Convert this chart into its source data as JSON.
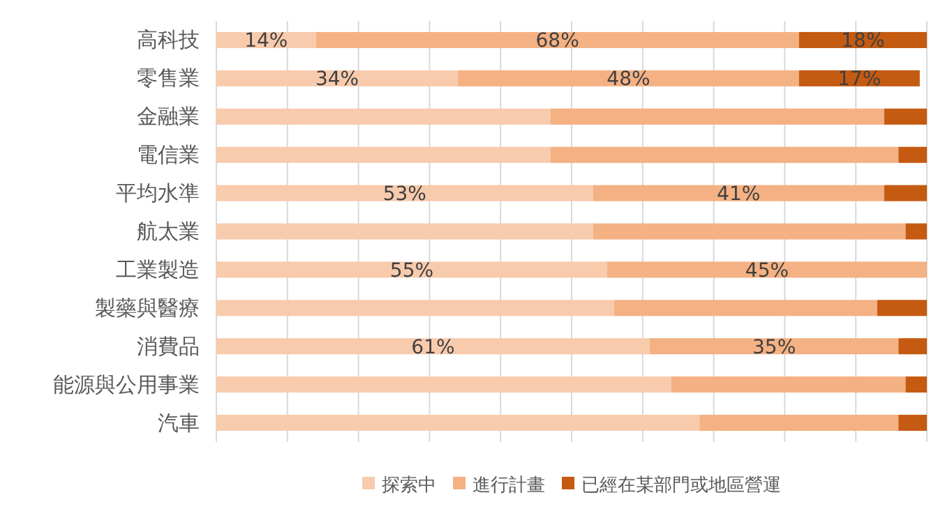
{
  "chart_data": {
    "type": "bar",
    "orientation": "horizontal",
    "stacked": true,
    "categories": [
      "高科技",
      "零售業",
      "金融業",
      "電信業",
      "平均水準",
      "航太業",
      "工業製造",
      "製藥與醫療",
      "消費品",
      "能源與公用事業",
      "汽車"
    ],
    "series": [
      {
        "name": "探索中",
        "color": "#f8cbad",
        "values": [
          14,
          34,
          47,
          47,
          53,
          53,
          55,
          56,
          61,
          64,
          68
        ],
        "value_labels": [
          "14%",
          "34%",
          null,
          null,
          "53%",
          null,
          "55%",
          null,
          "61%",
          null,
          null
        ]
      },
      {
        "name": "進行計畫",
        "color": "#f4b183",
        "values": [
          68,
          48,
          47,
          49,
          41,
          44,
          45,
          37,
          35,
          33,
          28
        ],
        "value_labels": [
          "68%",
          "48%",
          null,
          null,
          "41%",
          null,
          "45%",
          null,
          "35%",
          null,
          null
        ]
      },
      {
        "name": "已經在某部門或地區營運",
        "color": "#c55a11",
        "values": [
          18,
          17,
          6,
          4,
          6,
          3,
          0,
          7,
          4,
          3,
          4
        ],
        "value_labels": [
          "18%",
          "17%",
          null,
          null,
          null,
          null,
          null,
          null,
          null,
          null,
          null
        ]
      }
    ],
    "xlim": [
      0,
      100
    ],
    "xticks": [
      {
        "value": 0,
        "label": null
      },
      {
        "value": 10,
        "label": null
      },
      {
        "value": 20,
        "label": null
      },
      {
        "value": 30,
        "label": null
      },
      {
        "value": 40,
        "label": null
      },
      {
        "value": 50,
        "label": null
      },
      {
        "value": 60,
        "label": null
      },
      {
        "value": 70,
        "label": null
      },
      {
        "value": 80,
        "label": null
      },
      {
        "value": 90,
        "label": null
      },
      {
        "value": 100,
        "label": null
      }
    ],
    "grid": "x",
    "legend": "bottom",
    "tick_labels": "y"
  }
}
